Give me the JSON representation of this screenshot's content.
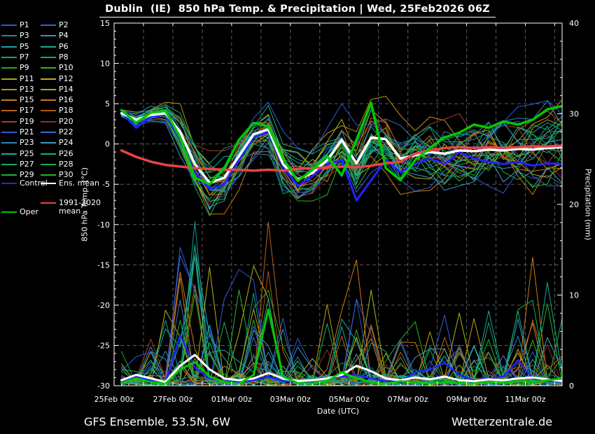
{
  "header": {
    "title": "Dublin  (IE)  850 hPa Temp. & Precipitation | Wed, 25Feb2026 06Z"
  },
  "footer": {
    "left": "GFS Ensemble, 53.5N, 6W",
    "right": "Wetterzentrale.de"
  },
  "legend": {
    "control": {
      "label": "Control",
      "color": "#2222ff"
    },
    "ens_mean": {
      "label": "Ens. mean",
      "color": "#ffffff"
    },
    "climate": {
      "label": "1991-2020",
      "label2": "mean",
      "color": "#e84545"
    },
    "oper": {
      "label": "Oper",
      "color": "#00c800"
    }
  },
  "chart_data": {
    "type": "line",
    "title": "Dublin (IE) 850 hPa Temp. & Precipitation | Wed, 25Feb2026 06Z",
    "xlabel": "Date (UTC)",
    "ylabel_left": "850 hPa Temp. (°C)",
    "ylabel_right": "Precipitation (mm)",
    "ylim_left": [
      -30,
      15
    ],
    "ylim_right": [
      0,
      40
    ],
    "x_span_days": 15.25,
    "t_start_days": 0.25,
    "t_step_days": 0.5,
    "x_tick_labels": [
      "25Feb 00z",
      "27Feb 00z",
      "01Mar 00z",
      "03Mar 00z",
      "05Mar 00z",
      "07Mar 00z",
      "09Mar 00z",
      "11Mar 00z"
    ],
    "x_tick_days": [
      0,
      2,
      4,
      6,
      8,
      10,
      12,
      14
    ],
    "y_left_ticks": [
      15,
      10,
      5,
      0,
      -5,
      -10,
      -15,
      -20,
      -25,
      -30
    ],
    "y_right_ticks": [
      40,
      30,
      20,
      10,
      0
    ],
    "grid_color": "#5c5c5c",
    "frame_color": "#ffffff",
    "series": {
      "ens_mean_temp": [
        3.8,
        3.0,
        3.6,
        3.8,
        1.5,
        -2.5,
        -4.8,
        -4.2,
        -1.5,
        1.2,
        1.8,
        -2.5,
        -4.4,
        -3.6,
        -2.0,
        0.5,
        -2.4,
        0.8,
        0.6,
        -1.8,
        -1.4,
        -1.0,
        -1.2,
        -0.8,
        -0.9,
        -0.7,
        -0.8,
        -0.6,
        -0.7,
        -0.5,
        -0.4
      ],
      "climate_temp": [
        -0.8,
        -1.6,
        -2.2,
        -2.6,
        -2.8,
        -3.0,
        -3.1,
        -3.2,
        -3.2,
        -3.3,
        -3.2,
        -3.3,
        -3.1,
        -3.0,
        -2.9,
        -2.8,
        -2.9,
        -2.7,
        -2.4,
        -2.2,
        -1.2,
        -0.8,
        -0.5,
        -0.4,
        -0.5,
        -0.4,
        -0.5,
        -0.4,
        -0.3,
        -0.3,
        -0.2
      ],
      "control_temp": [
        3.9,
        2.0,
        3.4,
        3.6,
        0.5,
        -3.5,
        -5.6,
        -5.0,
        -2.0,
        0.8,
        1.5,
        -2.8,
        -5.2,
        -4.0,
        -2.5,
        -2.0,
        -7.0,
        -4.5,
        -2.0,
        -3.5,
        -2.5,
        -1.8,
        -2.5,
        -1.0,
        -1.8,
        -2.2,
        -2.5,
        -2.2,
        -2.7,
        -2.4,
        -2.5
      ],
      "oper_temp": [
        4.2,
        2.6,
        3.9,
        4.1,
        0.8,
        -4.2,
        -5.0,
        -3.0,
        0.5,
        2.6,
        2.2,
        -1.8,
        -4.6,
        -3.2,
        -1.5,
        -3.9,
        0.5,
        5.1,
        -3.0,
        -4.5,
        -2.0,
        -0.5,
        0.8,
        1.4,
        2.4,
        2.0,
        2.8,
        2.4,
        3.0,
        4.3,
        4.7
      ],
      "ens_mean_precip": [
        0.6,
        1.2,
        0.8,
        0.4,
        2.2,
        3.4,
        1.8,
        0.8,
        0.6,
        0.8,
        1.4,
        0.8,
        0.5,
        0.6,
        0.8,
        1.2,
        2.2,
        1.6,
        0.8,
        0.6,
        0.9,
        0.7,
        1.0,
        0.6,
        0.5,
        0.7,
        0.6,
        0.8,
        0.9,
        0.7,
        0.5
      ],
      "control_precip": [
        0.5,
        1.0,
        0.6,
        0.3,
        5.6,
        2.0,
        0.8,
        0.5,
        0.4,
        0.6,
        1.0,
        0.5,
        0.4,
        0.5,
        0.8,
        1.0,
        1.2,
        0.8,
        0.5,
        0.4,
        1.5,
        1.8,
        2.5,
        1.2,
        0.6,
        0.8,
        1.0,
        2.8,
        0.8,
        0.5,
        0.4
      ],
      "oper_precip": [
        0.3,
        0.8,
        0.4,
        0.2,
        1.8,
        2.6,
        1.0,
        0.4,
        0.2,
        1.2,
        8.4,
        1.0,
        0.3,
        0.2,
        0.5,
        1.5,
        0.8,
        0.4,
        0.2,
        0.5,
        0.3,
        0.2,
        0.4,
        0.3,
        0.2,
        0.4,
        0.3,
        0.5,
        0.4,
        0.6,
        0.8
      ]
    },
    "ensemble_spread_temp": [
      0.5,
      0.8,
      1.0,
      1.2,
      2.5,
      3.0,
      3.5,
      3.2,
      3.0,
      2.8,
      3.0,
      3.2,
      3.2,
      3.2,
      3.4,
      3.4,
      3.6,
      3.6,
      3.8,
      3.8,
      4.0,
      4.0,
      4.2,
      4.2,
      4.4,
      4.4,
      4.6,
      4.6,
      4.8,
      4.8,
      5.0
    ],
    "ensemble_precip_profile": [
      2,
      3,
      4,
      6,
      14,
      20,
      10,
      6,
      10,
      12,
      17,
      6,
      4,
      4,
      6,
      8,
      13,
      8,
      6,
      5,
      6,
      5,
      8,
      6,
      5,
      6,
      6,
      8,
      12,
      8,
      5
    ],
    "members": [
      {
        "label": "P1",
        "color": "#2a5ad0",
        "seed": 11,
        "tb": 0.2,
        "pb": 0.7
      },
      {
        "label": "P2",
        "color": "#2f62d8",
        "seed": 29,
        "tb": -0.5,
        "pb": 1.3
      },
      {
        "label": "P3",
        "color": "#2b7ec0",
        "seed": 43,
        "tb": 0.8,
        "pb": 0.9
      },
      {
        "label": "P4",
        "color": "#3a93c8",
        "seed": 59,
        "tb": -0.9,
        "pb": 1.1
      },
      {
        "label": "P5",
        "color": "#19a4ac",
        "seed": 73,
        "tb": 0.4,
        "pb": 0.8
      },
      {
        "label": "P6",
        "color": "#17ab90",
        "seed": 89,
        "tb": -0.2,
        "pb": 1.2
      },
      {
        "label": "P7",
        "color": "#10a392",
        "seed": 101,
        "tb": 0.9,
        "pb": 1.0
      },
      {
        "label": "P8",
        "color": "#14aa6e",
        "seed": 113,
        "tb": -0.6,
        "pb": 0.6
      },
      {
        "label": "P9",
        "color": "#21aa35",
        "seed": 131,
        "tb": 0.1,
        "pb": 1.4
      },
      {
        "label": "P10",
        "color": "#2db32d",
        "seed": 149,
        "tb": -0.8,
        "pb": 1.0
      },
      {
        "label": "P11",
        "color": "#a2aa1c",
        "seed": 167,
        "tb": 0.6,
        "pb": 0.8
      },
      {
        "label": "P12",
        "color": "#b3b316",
        "seed": 181,
        "tb": -0.3,
        "pb": 1.2
      },
      {
        "label": "P13",
        "color": "#ba921a",
        "seed": 197,
        "tb": 1.0,
        "pb": 0.7
      },
      {
        "label": "P14",
        "color": "#c49e10",
        "seed": 223,
        "tb": -0.7,
        "pb": 1.3
      },
      {
        "label": "P15",
        "color": "#cb8116",
        "seed": 239,
        "tb": 0.3,
        "pb": 0.9
      },
      {
        "label": "P16",
        "color": "#cc7c12",
        "seed": 251,
        "tb": -1.0,
        "pb": 1.1
      },
      {
        "label": "P17",
        "color": "#c06114",
        "seed": 269,
        "tb": 0.7,
        "pb": 1.0
      },
      {
        "label": "P18",
        "color": "#b55613",
        "seed": 283,
        "tb": -0.1,
        "pb": 0.8
      },
      {
        "label": "P19",
        "color": "#a83e20",
        "seed": 307,
        "tb": 0.5,
        "pb": 1.2
      },
      {
        "label": "P20",
        "color": "#92301e",
        "seed": 331,
        "tb": -0.4,
        "pb": 0.6
      },
      {
        "label": "P21",
        "color": "#2e5cd5",
        "seed": 347,
        "tb": 0.85,
        "pb": 1.4
      },
      {
        "label": "P22",
        "color": "#306cd2",
        "seed": 367,
        "tb": -0.65,
        "pb": 0.9
      },
      {
        "label": "P23",
        "color": "#2b87b8",
        "seed": 383,
        "tb": 0.15,
        "pb": 1.1
      },
      {
        "label": "P24",
        "color": "#33a2c2",
        "seed": 401,
        "tb": -0.95,
        "pb": 0.7
      },
      {
        "label": "P25",
        "color": "#16aaa2",
        "seed": 419,
        "tb": 0.45,
        "pb": 1.3
      },
      {
        "label": "P26",
        "color": "#13aa92",
        "seed": 433,
        "tb": -0.25,
        "pb": 0.8
      },
      {
        "label": "P27",
        "color": "#13aa70",
        "seed": 457,
        "tb": 0.95,
        "pb": 1.0
      },
      {
        "label": "P28",
        "color": "#17ae54",
        "seed": 479,
        "tb": -0.55,
        "pb": 1.2
      },
      {
        "label": "P29",
        "color": "#1fb030",
        "seed": 499,
        "tb": 0.05,
        "pb": 0.9
      },
      {
        "label": "P30",
        "color": "#26b626",
        "seed": 521,
        "tb": -0.75,
        "pb": 1.1
      }
    ]
  }
}
